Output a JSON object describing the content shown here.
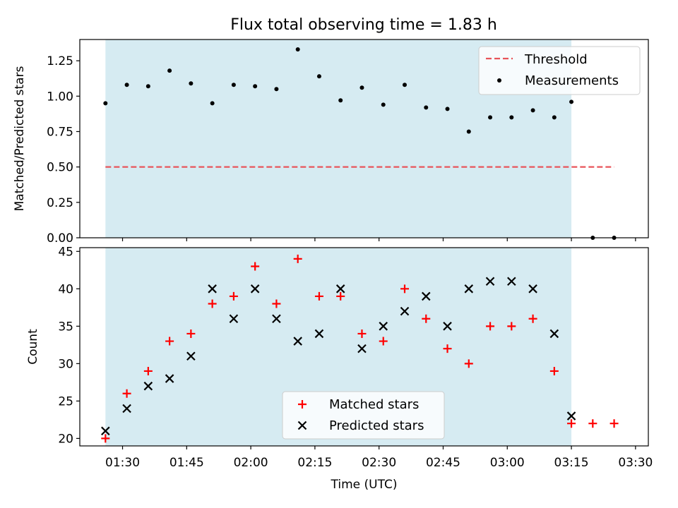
{
  "title": "Flux total observing time = 1.83 h",
  "colors": {
    "shade": "#add8e6",
    "threshold": "#e8545a",
    "matched": "#ff0000",
    "predicted": "#000000",
    "measurement": "#000000"
  },
  "chart_data": [
    {
      "type": "scatter",
      "ylabel": "Matched/Predicted stars",
      "ylim": [
        0,
        1.4
      ],
      "y_ticks": [
        "0.00",
        "0.25",
        "0.50",
        "0.75",
        "1.00",
        "1.25"
      ],
      "x_ticks": [
        "01:30",
        "01:45",
        "02:00",
        "02:15",
        "02:30",
        "02:45",
        "03:00",
        "03:15",
        "03:30"
      ],
      "grid": false,
      "legend_position": "top-right",
      "shaded_span": [
        "01:26",
        "03:15"
      ],
      "threshold": {
        "name": "Threshold",
        "value": 0.5,
        "x_range": [
          "01:26",
          "03:25"
        ]
      },
      "series": [
        {
          "name": "Measurements",
          "x": [
            "01:26",
            "01:31",
            "01:36",
            "01:41",
            "01:46",
            "01:51",
            "01:56",
            "02:01",
            "02:06",
            "02:11",
            "02:16",
            "02:21",
            "02:26",
            "02:31",
            "02:36",
            "02:41",
            "02:46",
            "02:51",
            "02:56",
            "03:01",
            "03:06",
            "03:11",
            "03:15",
            "03:20",
            "03:25"
          ],
          "values": [
            0.95,
            1.08,
            1.07,
            1.18,
            1.09,
            0.95,
            1.08,
            1.07,
            1.05,
            1.33,
            1.14,
            0.97,
            1.06,
            0.94,
            1.08,
            0.92,
            0.91,
            0.75,
            0.85,
            0.85,
            0.9,
            0.85,
            0.96,
            0.0,
            0.0
          ]
        }
      ]
    },
    {
      "type": "scatter",
      "xlabel": "Time (UTC)",
      "ylabel": "Count",
      "ylim": [
        19,
        45.5
      ],
      "y_ticks": [
        "20",
        "25",
        "30",
        "35",
        "40",
        "45"
      ],
      "x_ticks": [
        "01:30",
        "01:45",
        "02:00",
        "02:15",
        "02:30",
        "02:45",
        "03:00",
        "03:15",
        "03:30"
      ],
      "grid": false,
      "legend_position": "bottom-center",
      "shaded_span": [
        "01:26",
        "03:15"
      ],
      "series": [
        {
          "name": "Matched stars",
          "x": [
            "01:26",
            "01:31",
            "01:36",
            "01:41",
            "01:46",
            "01:51",
            "01:56",
            "02:01",
            "02:06",
            "02:11",
            "02:16",
            "02:21",
            "02:26",
            "02:31",
            "02:36",
            "02:41",
            "02:46",
            "02:51",
            "02:56",
            "03:01",
            "03:06",
            "03:11",
            "03:15",
            "03:20",
            "03:25"
          ],
          "values": [
            20,
            26,
            29,
            33,
            34,
            38,
            39,
            43,
            38,
            44,
            39,
            39,
            34,
            33,
            40,
            36,
            32,
            30,
            35,
            35,
            36,
            29,
            22,
            22,
            22
          ]
        },
        {
          "name": "Predicted stars",
          "x": [
            "01:26",
            "01:31",
            "01:36",
            "01:41",
            "01:46",
            "01:51",
            "01:56",
            "02:01",
            "02:06",
            "02:11",
            "02:16",
            "02:21",
            "02:26",
            "02:31",
            "02:36",
            "02:41",
            "02:46",
            "02:51",
            "02:56",
            "03:01",
            "03:06",
            "03:11",
            "03:15"
          ],
          "values": [
            21,
            24,
            27,
            28,
            31,
            40,
            36,
            40,
            36,
            33,
            34,
            40,
            32,
            35,
            37,
            39,
            35,
            40,
            41,
            41,
            40,
            34,
            23
          ]
        }
      ]
    }
  ]
}
